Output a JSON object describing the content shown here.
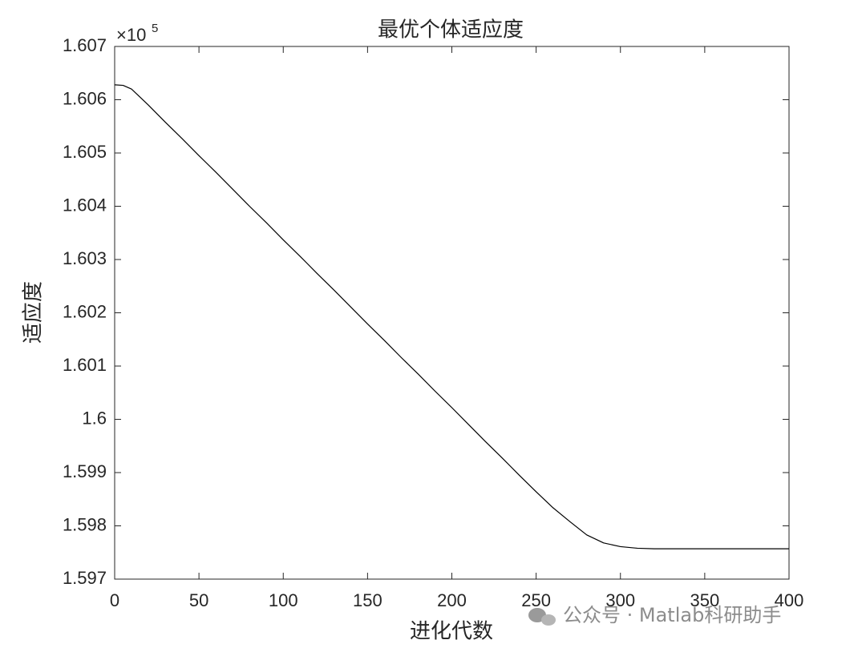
{
  "chart_data": {
    "type": "line",
    "title": "最优个体适应度",
    "xlabel": "进化代数",
    "ylabel": "适应度",
    "y_scale_base": "×10",
    "y_scale_exponent": "5",
    "x": [
      0,
      5,
      10,
      20,
      30,
      40,
      50,
      60,
      70,
      80,
      90,
      100,
      110,
      120,
      130,
      140,
      150,
      160,
      170,
      180,
      190,
      200,
      210,
      220,
      230,
      240,
      250,
      260,
      270,
      280,
      290,
      300,
      310,
      320,
      340,
      360,
      380,
      400
    ],
    "values": [
      1.60628,
      1.60627,
      1.6062,
      1.6059,
      1.60558,
      1.60527,
      1.60495,
      1.60464,
      1.60432,
      1.604,
      1.60369,
      1.60337,
      1.60306,
      1.60274,
      1.60243,
      1.60211,
      1.60179,
      1.60148,
      1.60116,
      1.60085,
      1.60053,
      1.60022,
      1.5999,
      1.59958,
      1.59927,
      1.59895,
      1.59864,
      1.59834,
      1.59808,
      1.59783,
      1.59768,
      1.59761,
      1.59758,
      1.59757,
      1.59757,
      1.59757,
      1.59757,
      1.59757
    ],
    "color": "#000000",
    "xlim": [
      0,
      400
    ],
    "xticks": [
      0,
      50,
      100,
      150,
      200,
      250,
      300,
      350,
      400
    ],
    "ylim": [
      1.597,
      1.607
    ],
    "yticks": [
      1.597,
      1.598,
      1.599,
      1.6,
      1.601,
      1.602,
      1.603,
      1.604,
      1.605,
      1.606,
      1.607
    ],
    "grid": false
  },
  "watermark": "公众号 · Matlab科研助手"
}
